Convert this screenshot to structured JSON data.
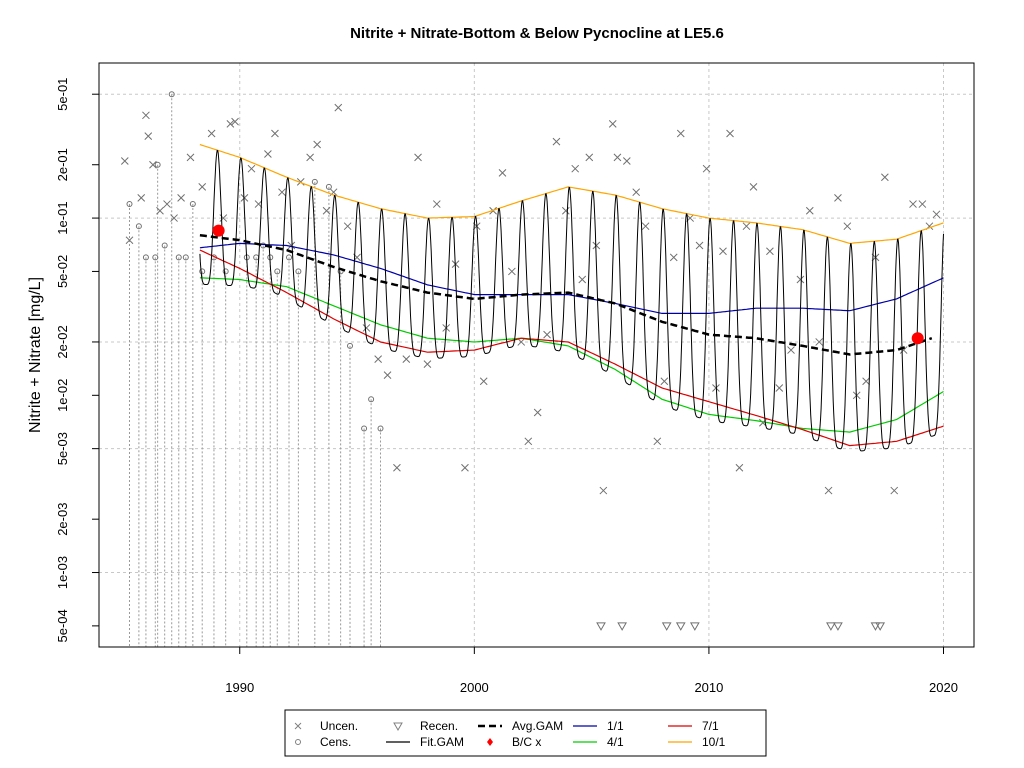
{
  "chart_data": {
    "type": "line",
    "title": "Nitrite + Nitrate-Bottom & Below Pycnocline at LE5.6",
    "xlabel": "",
    "ylabel": "Nitrite + Nitrate [mg/L]",
    "y_scale": "log",
    "xlim": [
      1984.0,
      2021.3
    ],
    "ylim": [
      0.00038,
      0.75
    ],
    "x_ticks": [
      1990,
      2000,
      2010,
      2020
    ],
    "x_tick_labels": [
      "1990",
      "2000",
      "2010",
      "2020"
    ],
    "y_ticks": [
      0.0005,
      0.001,
      0.002,
      0.005,
      0.01,
      0.02,
      0.05,
      0.1,
      0.2,
      0.5
    ],
    "y_tick_labels": [
      "5e-04",
      "1e-03",
      "2e-03",
      "5e-03",
      "1e-02",
      "2e-02",
      "5e-02",
      "1e-01",
      "2e-01",
      "5e-01"
    ],
    "grid": true,
    "legend_position": "bottom",
    "legend": [
      {
        "label": "Uncen.",
        "symbol": "x",
        "color": "#808080"
      },
      {
        "label": "Cens.",
        "symbol": "circle",
        "color": "#808080"
      },
      {
        "label": "Recen.",
        "symbol": "triangle-down",
        "color": "#808080"
      },
      {
        "label": "Fit.GAM",
        "symbol": "line",
        "color": "#000000"
      },
      {
        "label": "Avg.GAM",
        "symbol": "dashed",
        "color": "#000000"
      },
      {
        "label": "B/C x",
        "symbol": "diamond",
        "color": "#ff0000"
      },
      {
        "label": "1/1",
        "symbol": "line",
        "color": "#0000aa"
      },
      {
        "label": "4/1",
        "symbol": "line",
        "color": "#00cc00"
      },
      {
        "label": "7/1",
        "symbol": "line",
        "color": "#dd0000"
      },
      {
        "label": "10/1",
        "symbol": "line",
        "color": "#ffa500"
      }
    ],
    "series": [
      {
        "name": "10/1",
        "color": "#ffa500",
        "x": [
          1988.3,
          1990,
          1992,
          1994,
          1996,
          1998,
          2000,
          2002,
          2004,
          2006,
          2008,
          2010,
          2012,
          2014,
          2016,
          2018,
          2020
        ],
        "y": [
          0.26,
          0.22,
          0.17,
          0.135,
          0.113,
          0.1,
          0.102,
          0.125,
          0.15,
          0.135,
          0.113,
          0.1,
          0.094,
          0.086,
          0.072,
          0.076,
          0.094
        ]
      },
      {
        "name": "1/1",
        "color": "#0000aa",
        "x": [
          1988.3,
          1990,
          1992,
          1994,
          1996,
          1998,
          2000,
          2002,
          2004,
          2006,
          2008,
          2010,
          2012,
          2014,
          2016,
          2018,
          2020
        ],
        "y": [
          0.068,
          0.072,
          0.07,
          0.062,
          0.052,
          0.042,
          0.037,
          0.037,
          0.037,
          0.033,
          0.029,
          0.029,
          0.031,
          0.031,
          0.03,
          0.035,
          0.046
        ]
      },
      {
        "name": "4/1",
        "color": "#00cc00",
        "x": [
          1988.3,
          1990,
          1992,
          1994,
          1996,
          1998,
          2000,
          2002,
          2004,
          2006,
          2008,
          2010,
          2012,
          2014,
          2016,
          2018,
          2020
        ],
        "y": [
          0.046,
          0.045,
          0.041,
          0.032,
          0.025,
          0.021,
          0.02,
          0.021,
          0.019,
          0.014,
          0.0095,
          0.0078,
          0.0072,
          0.0065,
          0.0062,
          0.0073,
          0.0105
        ]
      },
      {
        "name": "7/1",
        "color": "#dd0000",
        "x": [
          1988.3,
          1990,
          1992,
          1994,
          1996,
          1998,
          2000,
          2002,
          2004,
          2006,
          2008,
          2010,
          2012,
          2014,
          2016,
          2018,
          2020
        ],
        "y": [
          0.066,
          0.052,
          0.038,
          0.027,
          0.02,
          0.0175,
          0.018,
          0.021,
          0.02,
          0.015,
          0.011,
          0.0092,
          0.0077,
          0.0064,
          0.0052,
          0.0055,
          0.0067
        ]
      },
      {
        "name": "Avg.GAM",
        "color": "#000000",
        "x": [
          1988.3,
          1990,
          1992,
          1994,
          1996,
          1998,
          2000,
          2002,
          2004,
          2006,
          2008,
          2010,
          2012,
          2014,
          2016,
          2018,
          2019.5
        ],
        "y": [
          0.08,
          0.075,
          0.066,
          0.053,
          0.044,
          0.038,
          0.035,
          0.037,
          0.038,
          0.033,
          0.026,
          0.022,
          0.021,
          0.019,
          0.017,
          0.018,
          0.021
        ]
      },
      {
        "name": "Fit.GAM",
        "color": "#000000",
        "x_range": [
          1988.3,
          2020.0
        ],
        "description": "seasonal fit oscillating between the 1/1-10/1 (high) and 4/1-7/1 (low) envelopes each year"
      }
    ],
    "bc_points": [
      {
        "x": 1989.1,
        "y": 0.085
      },
      {
        "x": 2018.9,
        "y": 0.021
      }
    ],
    "uncensored": [
      [
        1985.1,
        0.21
      ],
      [
        1985.3,
        0.075
      ],
      [
        1985.8,
        0.13
      ],
      [
        1986.0,
        0.38
      ],
      [
        1986.1,
        0.29
      ],
      [
        1986.3,
        0.2
      ],
      [
        1986.6,
        0.11
      ],
      [
        1986.9,
        0.12
      ],
      [
        1987.2,
        0.1
      ],
      [
        1987.5,
        0.13
      ],
      [
        1987.9,
        0.22
      ],
      [
        1988.4,
        0.15
      ],
      [
        1988.8,
        0.3
      ],
      [
        1989.3,
        0.1
      ],
      [
        1989.6,
        0.34
      ],
      [
        1989.8,
        0.35
      ],
      [
        1990.2,
        0.13
      ],
      [
        1990.5,
        0.19
      ],
      [
        1990.8,
        0.12
      ],
      [
        1991.2,
        0.23
      ],
      [
        1991.5,
        0.3
      ],
      [
        1991.8,
        0.14
      ],
      [
        1992.2,
        0.07
      ],
      [
        1992.6,
        0.16
      ],
      [
        1993.0,
        0.22
      ],
      [
        1993.3,
        0.26
      ],
      [
        1993.7,
        0.11
      ],
      [
        1994.0,
        0.14
      ],
      [
        1994.2,
        0.42
      ],
      [
        1994.6,
        0.09
      ],
      [
        1995.0,
        0.06
      ],
      [
        1995.4,
        0.024
      ],
      [
        1995.9,
        0.016
      ],
      [
        1996.3,
        0.013
      ],
      [
        1996.7,
        0.0039
      ],
      [
        1997.1,
        0.016
      ],
      [
        1997.6,
        0.22
      ],
      [
        1998.0,
        0.015
      ],
      [
        1998.4,
        0.12
      ],
      [
        1998.8,
        0.024
      ],
      [
        1999.2,
        0.055
      ],
      [
        1999.6,
        0.0039
      ],
      [
        2000.1,
        0.09
      ],
      [
        2000.4,
        0.012
      ],
      [
        2000.8,
        0.11
      ],
      [
        2001.2,
        0.18
      ],
      [
        2001.6,
        0.05
      ],
      [
        2002.0,
        0.02
      ],
      [
        2002.3,
        0.0055
      ],
      [
        2002.7,
        0.008
      ],
      [
        2003.1,
        0.022
      ],
      [
        2003.5,
        0.27
      ],
      [
        2003.9,
        0.11
      ],
      [
        2004.3,
        0.19
      ],
      [
        2004.6,
        0.045
      ],
      [
        2004.9,
        0.22
      ],
      [
        2005.2,
        0.07
      ],
      [
        2005.5,
        0.0029
      ],
      [
        2005.9,
        0.34
      ],
      [
        2006.1,
        0.22
      ],
      [
        2006.5,
        0.21
      ],
      [
        2006.9,
        0.14
      ],
      [
        2007.3,
        0.09
      ],
      [
        2007.8,
        0.0055
      ],
      [
        2008.1,
        0.012
      ],
      [
        2008.5,
        0.06
      ],
      [
        2008.8,
        0.3
      ],
      [
        2009.2,
        0.1
      ],
      [
        2009.6,
        0.07
      ],
      [
        2009.9,
        0.19
      ],
      [
        2010.3,
        0.011
      ],
      [
        2010.6,
        0.065
      ],
      [
        2010.9,
        0.3
      ],
      [
        2011.3,
        0.0039
      ],
      [
        2011.6,
        0.09
      ],
      [
        2011.9,
        0.15
      ],
      [
        2012.3,
        0.007
      ],
      [
        2012.6,
        0.065
      ],
      [
        2013.0,
        0.011
      ],
      [
        2013.5,
        0.018
      ],
      [
        2013.9,
        0.045
      ],
      [
        2014.3,
        0.11
      ],
      [
        2014.7,
        0.02
      ],
      [
        2015.1,
        0.0029
      ],
      [
        2015.5,
        0.13
      ],
      [
        2015.9,
        0.09
      ],
      [
        2016.3,
        0.01
      ],
      [
        2016.7,
        0.012
      ],
      [
        2017.1,
        0.06
      ],
      [
        2017.5,
        0.17
      ],
      [
        2017.9,
        0.0029
      ],
      [
        2018.3,
        0.018
      ],
      [
        2018.7,
        0.12
      ],
      [
        2019.1,
        0.12
      ],
      [
        2019.4,
        0.09
      ],
      [
        2019.7,
        0.105
      ]
    ],
    "censored": [
      [
        1985.3,
        0.12
      ],
      [
        1985.7,
        0.09
      ],
      [
        1986.0,
        0.06
      ],
      [
        1986.4,
        0.06
      ],
      [
        1986.5,
        0.2
      ],
      [
        1986.8,
        0.07
      ],
      [
        1987.1,
        0.5
      ],
      [
        1987.4,
        0.06
      ],
      [
        1987.7,
        0.06
      ],
      [
        1988.0,
        0.12
      ],
      [
        1988.4,
        0.05
      ],
      [
        1988.9,
        0.06
      ],
      [
        1989.4,
        0.05
      ],
      [
        1990.3,
        0.06
      ],
      [
        1990.7,
        0.06
      ],
      [
        1991.0,
        0.07
      ],
      [
        1991.3,
        0.06
      ],
      [
        1991.6,
        0.05
      ],
      [
        1992.1,
        0.06
      ],
      [
        1992.5,
        0.05
      ],
      [
        1993.2,
        0.16
      ],
      [
        1993.8,
        0.15
      ],
      [
        1994.3,
        0.05
      ],
      [
        1994.7,
        0.019
      ],
      [
        1995.3,
        0.0065
      ],
      [
        1995.6,
        0.0095
      ],
      [
        1996.0,
        0.0065
      ]
    ],
    "recensored": [
      [
        2005.4,
        0.0005
      ],
      [
        2006.3,
        0.0005
      ],
      [
        2008.2,
        0.0005
      ],
      [
        2008.8,
        0.0005
      ],
      [
        2009.4,
        0.0005
      ],
      [
        2015.2,
        0.0005
      ],
      [
        2015.5,
        0.0005
      ],
      [
        2017.1,
        0.0005
      ],
      [
        2017.3,
        0.0005
      ]
    ]
  }
}
